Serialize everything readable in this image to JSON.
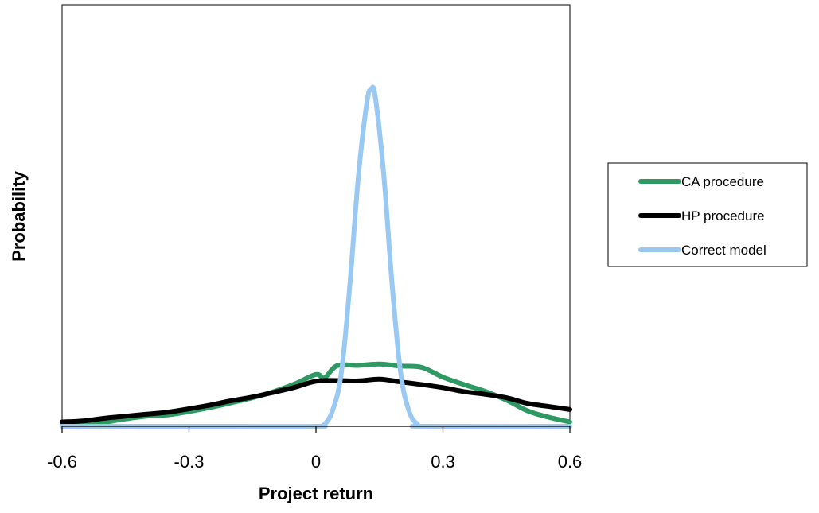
{
  "chart_data": {
    "type": "line",
    "xlabel": "Project return",
    "ylabel": "Probability",
    "xlim": [
      -0.6,
      0.6
    ],
    "ylim": [
      0,
      100
    ],
    "x_ticks": [
      "-0.6",
      "-0.3",
      "0",
      "0.3",
      "0.6"
    ],
    "grid": false,
    "legend_position": "right",
    "series": [
      {
        "name": "CA procedure",
        "color": "#2e9963",
        "x": [
          -0.6,
          -0.55,
          -0.5,
          -0.45,
          -0.4,
          -0.35,
          -0.3,
          -0.25,
          -0.2,
          -0.15,
          -0.1,
          -0.05,
          0,
          0.02,
          0.05,
          0.1,
          0.15,
          0.2,
          0.25,
          0.3,
          0.35,
          0.4,
          0.45,
          0.5,
          0.55,
          0.6
        ],
        "y": [
          0,
          0.5,
          1.2,
          2.2,
          3.0,
          3.4,
          4.4,
          5.6,
          7.0,
          8.5,
          10.3,
          12.6,
          15.4,
          14.4,
          18.0,
          18.1,
          18.5,
          17.9,
          17.5,
          14.6,
          12.4,
          10.4,
          7.8,
          4.6,
          2.7,
          1.3
        ]
      },
      {
        "name": "HP procedure",
        "color": "#000000",
        "x": [
          -0.6,
          -0.55,
          -0.5,
          -0.45,
          -0.4,
          -0.35,
          -0.3,
          -0.25,
          -0.2,
          -0.15,
          -0.1,
          -0.05,
          0,
          0.05,
          0.1,
          0.15,
          0.2,
          0.25,
          0.3,
          0.35,
          0.4,
          0.45,
          0.5,
          0.55,
          0.6
        ],
        "y": [
          1.3,
          1.6,
          2.4,
          3.0,
          3.6,
          4.2,
          5.2,
          6.3,
          7.6,
          8.7,
          10.1,
          11.6,
          13.4,
          13.6,
          13.5,
          14.0,
          13.2,
          12.4,
          11.5,
          10.3,
          9.5,
          8.5,
          6.8,
          5.9,
          5.0
        ]
      },
      {
        "name": "Correct model",
        "color": "#99c9f2",
        "x": [
          -0.6,
          -0.2,
          0,
          0.02,
          0.04,
          0.06,
          0.08,
          0.1,
          0.12,
          0.13,
          0.14,
          0.16,
          0.18,
          0.2,
          0.22,
          0.24,
          0.26,
          0.6
        ],
        "y": [
          0,
          0,
          0,
          0.6,
          5,
          16,
          42,
          74,
          96,
          100,
          98,
          75,
          42,
          16,
          4.5,
          0.6,
          0,
          0
        ]
      }
    ]
  }
}
